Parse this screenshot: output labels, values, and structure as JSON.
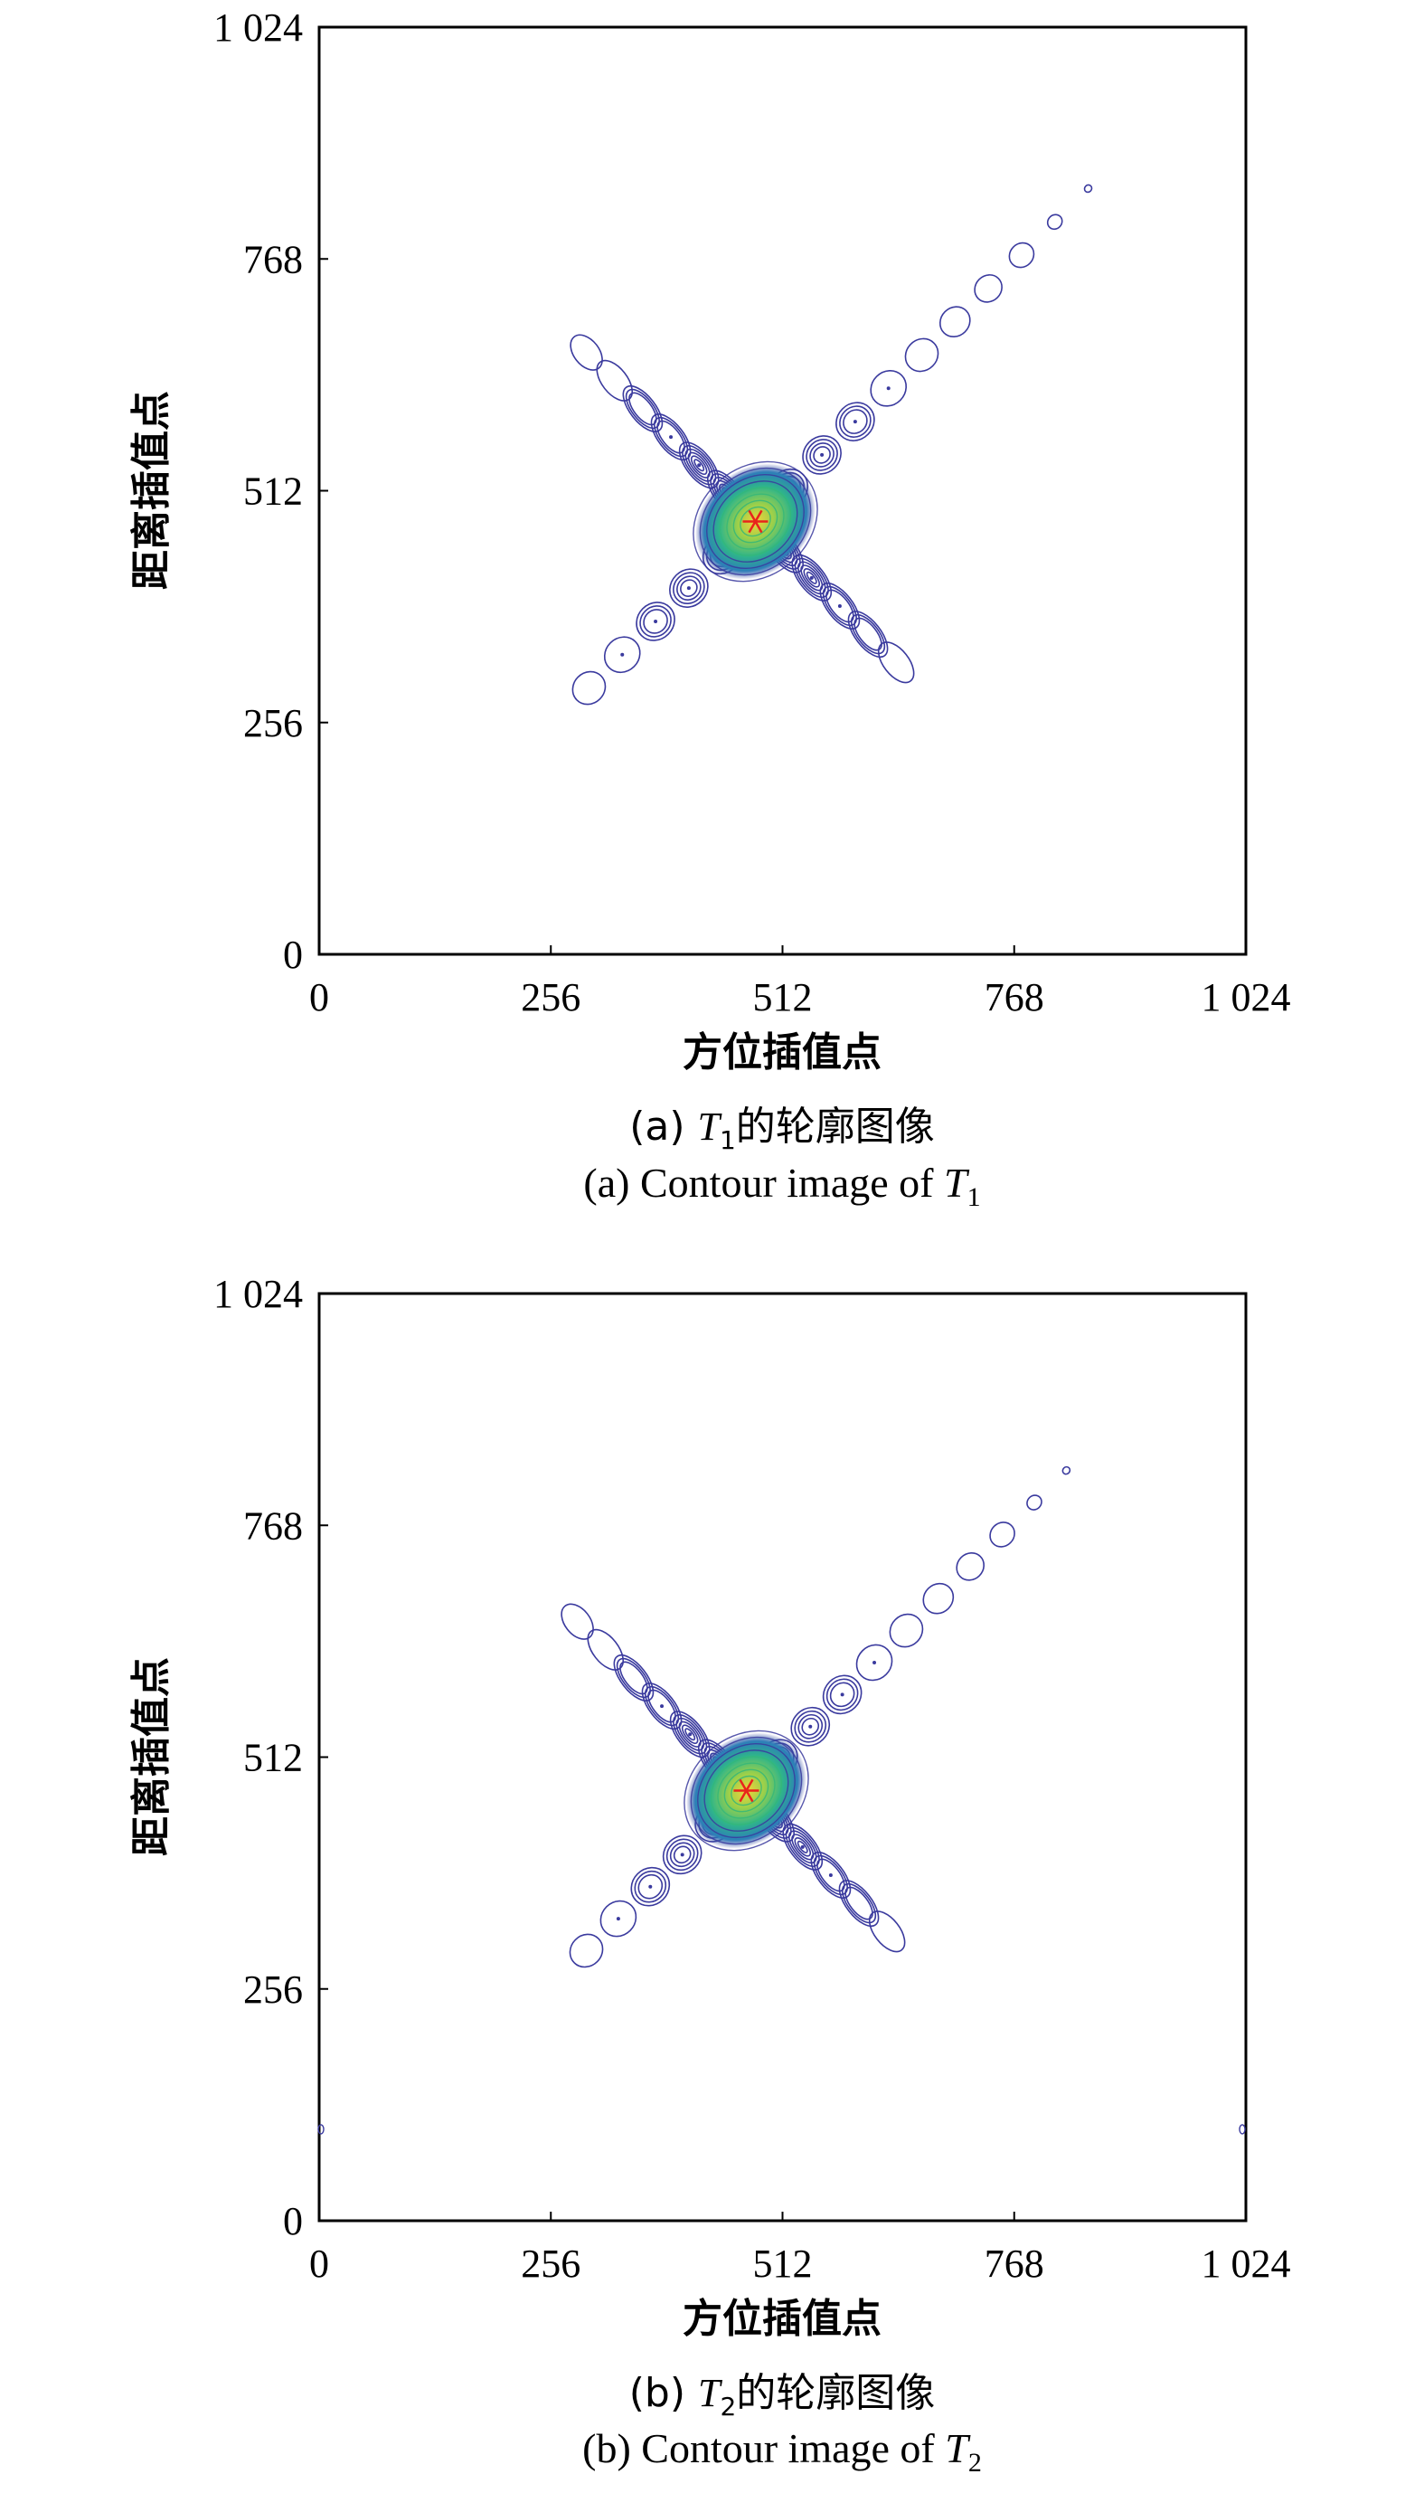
{
  "chart_data": [
    {
      "type": "contour",
      "panel": "a",
      "xlabel": "方位插值点",
      "ylabel": "距离插值点",
      "xlim": [
        0,
        1024
      ],
      "ylim": [
        0,
        1024
      ],
      "xticks": [
        "0",
        "256",
        "512",
        "768",
        "1 024"
      ],
      "yticks": [
        "0",
        "256",
        "512",
        "768",
        "1 024"
      ],
      "caption_cn": {
        "prefix": "(a) ",
        "var": "T",
        "sub": "1",
        "suffix": "的轮廓图像"
      },
      "caption_en": {
        "prefix": "(a) Contour image of ",
        "var": "T",
        "sub": "1"
      },
      "peak": {
        "x": 482,
        "y": 478
      },
      "diag_spacing": 52,
      "diag_steps": [
        -5,
        -4,
        -3,
        -2,
        -1,
        1,
        2,
        3,
        4,
        5,
        6,
        7,
        8,
        9,
        10
      ],
      "anti_spacing": 44,
      "anti_steps": [
        -5,
        -4,
        -3,
        -2,
        -1,
        1,
        2,
        3,
        4,
        5,
        6
      ]
    },
    {
      "type": "contour",
      "panel": "b",
      "xlabel": "方位插值点",
      "ylabel": "距离插值点",
      "xlim": [
        0,
        1024
      ],
      "ylim": [
        0,
        1024
      ],
      "xticks": [
        "0",
        "256",
        "512",
        "768",
        "1 024"
      ],
      "yticks": [
        "0",
        "256",
        "512",
        "768",
        "1 024"
      ],
      "caption_cn": {
        "prefix": "(b) ",
        "var": "T",
        "sub": "2",
        "suffix": "的轮廓图像"
      },
      "caption_en": {
        "prefix": "(b) Contour image of ",
        "var": "T",
        "sub": "2"
      },
      "peak": {
        "x": 472,
        "y": 475
      },
      "diag_spacing": 50,
      "diag_steps": [
        -5,
        -4,
        -3,
        -2,
        -1,
        1,
        2,
        3,
        4,
        5,
        6,
        7,
        8,
        9,
        10
      ],
      "anti_spacing": 44,
      "anti_steps": [
        -5,
        -4,
        -3,
        -2,
        -1,
        1,
        2,
        3,
        4,
        5,
        6
      ],
      "edge_marks": [
        {
          "x": 2,
          "y": 101
        },
        {
          "x": 1020,
          "y": 101
        }
      ]
    }
  ],
  "colors": {
    "contour_line": "#3a3a9e",
    "peak_core": "#f2c531",
    "peak_mid": "#35b779",
    "peak_outer": "#2c7fb8",
    "peak_marker": "#e8241c",
    "axis": "#000000"
  }
}
